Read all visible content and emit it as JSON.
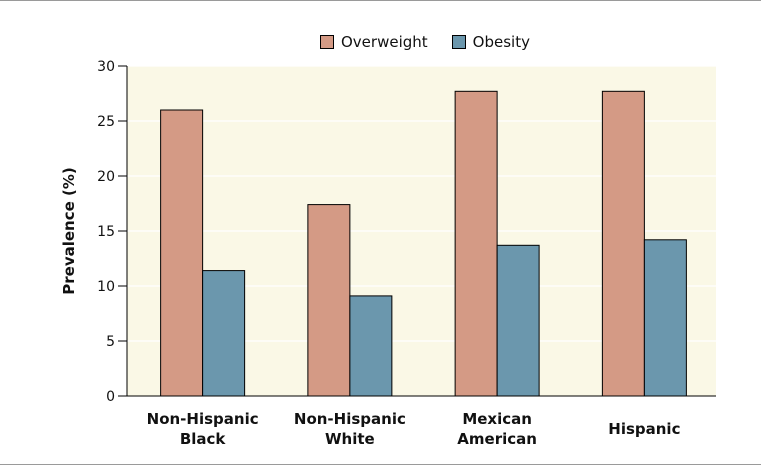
{
  "chart_data": {
    "type": "bar",
    "categories": [
      [
        "Non-Hispanic",
        "Black"
      ],
      [
        "Non-Hispanic",
        "White"
      ],
      [
        "Mexican",
        "American"
      ],
      [
        "Hispanic"
      ]
    ],
    "series": [
      {
        "name": "Overweight",
        "values": [
          26.0,
          17.4,
          27.7,
          27.7
        ],
        "color": "#d49a85"
      },
      {
        "name": "Obesity",
        "values": [
          11.4,
          9.1,
          13.7,
          14.2
        ],
        "color": "#6b97ad"
      }
    ],
    "title": "",
    "xlabel": "",
    "ylabel": "Prevalence (%)",
    "ylim": [
      0,
      30
    ],
    "yticks": [
      0,
      5,
      10,
      15,
      20,
      25,
      30
    ],
    "grid": true,
    "legend_position": "top-center",
    "plot_background": "#faf8e6",
    "grid_color": "#ffffff"
  }
}
